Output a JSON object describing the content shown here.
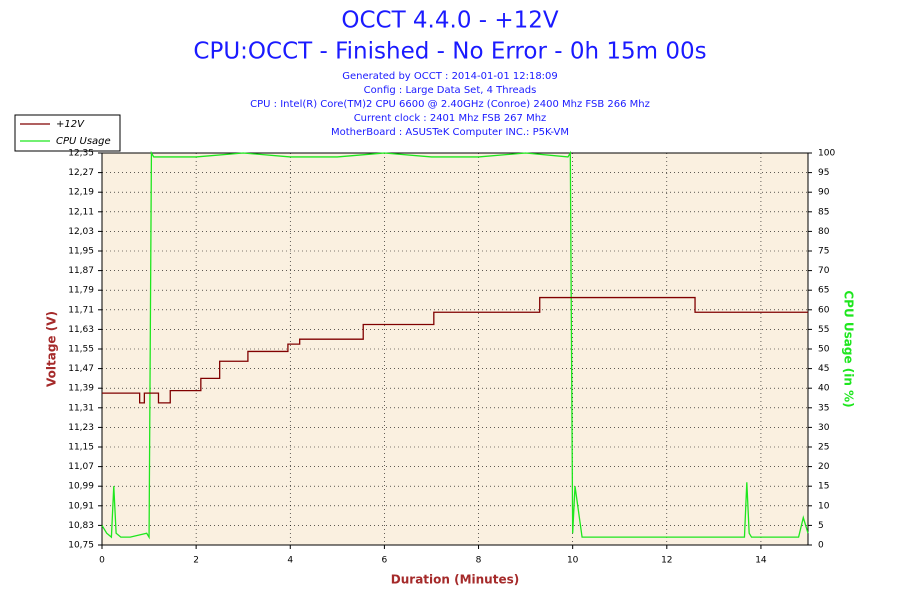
{
  "chart_data": {
    "type": "line",
    "title": "OCCT 4.4.0 - +12V",
    "subtitle": "CPU:OCCT - Finished - No Error - 0h 15m 00s",
    "info": [
      "Generated by OCCT : 2014-01-01 12:18:09",
      "Config : Large Data Set, 4 Threads",
      "CPU : Intel(R) Core(TM)2 CPU 6600 @ 2.40GHz (Conroe) 2400 Mhz FSB 266 Mhz",
      "Current clock : 2401 Mhz FSB 267 Mhz",
      "MotherBoard : ASUSTeK Computer INC.: P5K-VM"
    ],
    "xlabel": "Duration (Minutes)",
    "ylabel": "Voltage (V)",
    "y2label": "CPU Usage (in %)",
    "xlim": [
      0,
      15
    ],
    "xticks": [
      0,
      2,
      4,
      6,
      8,
      10,
      12,
      14
    ],
    "ylim": [
      10.75,
      12.35
    ],
    "yticks": [
      {
        "value": 10.75,
        "label": "10,75"
      },
      {
        "value": 10.83,
        "label": "10,83"
      },
      {
        "value": 10.91,
        "label": "10,91"
      },
      {
        "value": 10.99,
        "label": "10,99"
      },
      {
        "value": 11.07,
        "label": "11,07"
      },
      {
        "value": 11.15,
        "label": "11,15"
      },
      {
        "value": 11.23,
        "label": "11,23"
      },
      {
        "value": 11.31,
        "label": "11,31"
      },
      {
        "value": 11.39,
        "label": "11,39"
      },
      {
        "value": 11.47,
        "label": "11,47"
      },
      {
        "value": 11.55,
        "label": "11,55"
      },
      {
        "value": 11.63,
        "label": "11,63"
      },
      {
        "value": 11.71,
        "label": "11,71"
      },
      {
        "value": 11.79,
        "label": "11,79"
      },
      {
        "value": 11.87,
        "label": "11,87"
      },
      {
        "value": 11.95,
        "label": "11,95"
      },
      {
        "value": 12.03,
        "label": "12,03"
      },
      {
        "value": 12.11,
        "label": "12,11"
      },
      {
        "value": 12.19,
        "label": "12,19"
      },
      {
        "value": 12.27,
        "label": "12,27"
      },
      {
        "value": 12.35,
        "label": "12,35"
      }
    ],
    "y2lim": [
      0,
      100
    ],
    "y2ticks": [
      0,
      5,
      10,
      15,
      20,
      25,
      30,
      35,
      40,
      45,
      50,
      55,
      60,
      65,
      70,
      75,
      80,
      85,
      90,
      95,
      100
    ],
    "grid": true,
    "series": [
      {
        "name": "+12V",
        "color": "#800000",
        "x": [
          0,
          0.8,
          0.8,
          0.9,
          0.9,
          1.2,
          1.2,
          1.45,
          1.45,
          2.1,
          2.1,
          2.5,
          2.5,
          3.1,
          3.1,
          3.95,
          3.95,
          4.2,
          4.2,
          5.55,
          5.55,
          7.05,
          7.05,
          9.3,
          9.3,
          12.6,
          12.6,
          15
        ],
        "values": [
          11.37,
          11.37,
          11.33,
          11.33,
          11.37,
          11.37,
          11.33,
          11.33,
          11.38,
          11.38,
          11.43,
          11.43,
          11.5,
          11.5,
          11.54,
          11.54,
          11.57,
          11.57,
          11.59,
          11.59,
          11.65,
          11.65,
          11.7,
          11.7,
          11.76,
          11.76,
          11.7,
          11.7
        ]
      },
      {
        "name": "CPU Usage",
        "color": "#1ee61e",
        "axis": "y2",
        "x": [
          0,
          0.1,
          0.2,
          0.25,
          0.3,
          0.4,
          0.6,
          0.95,
          1.0,
          1.05,
          1.1,
          2,
          3,
          4,
          5,
          6,
          7,
          8,
          9,
          9.9,
          9.95,
          10.0,
          10.05,
          10.2,
          11,
          12,
          13,
          13.65,
          13.7,
          13.75,
          13.8,
          14,
          14.8,
          14.9,
          15
        ],
        "values": [
          5,
          3,
          2,
          15,
          3,
          2,
          2,
          3,
          2,
          100,
          99,
          99,
          100,
          99,
          99,
          100,
          99,
          99,
          100,
          99,
          100,
          3,
          15,
          2,
          2,
          2,
          2,
          2,
          16,
          3,
          2,
          2,
          2,
          7,
          3
        ]
      }
    ]
  }
}
